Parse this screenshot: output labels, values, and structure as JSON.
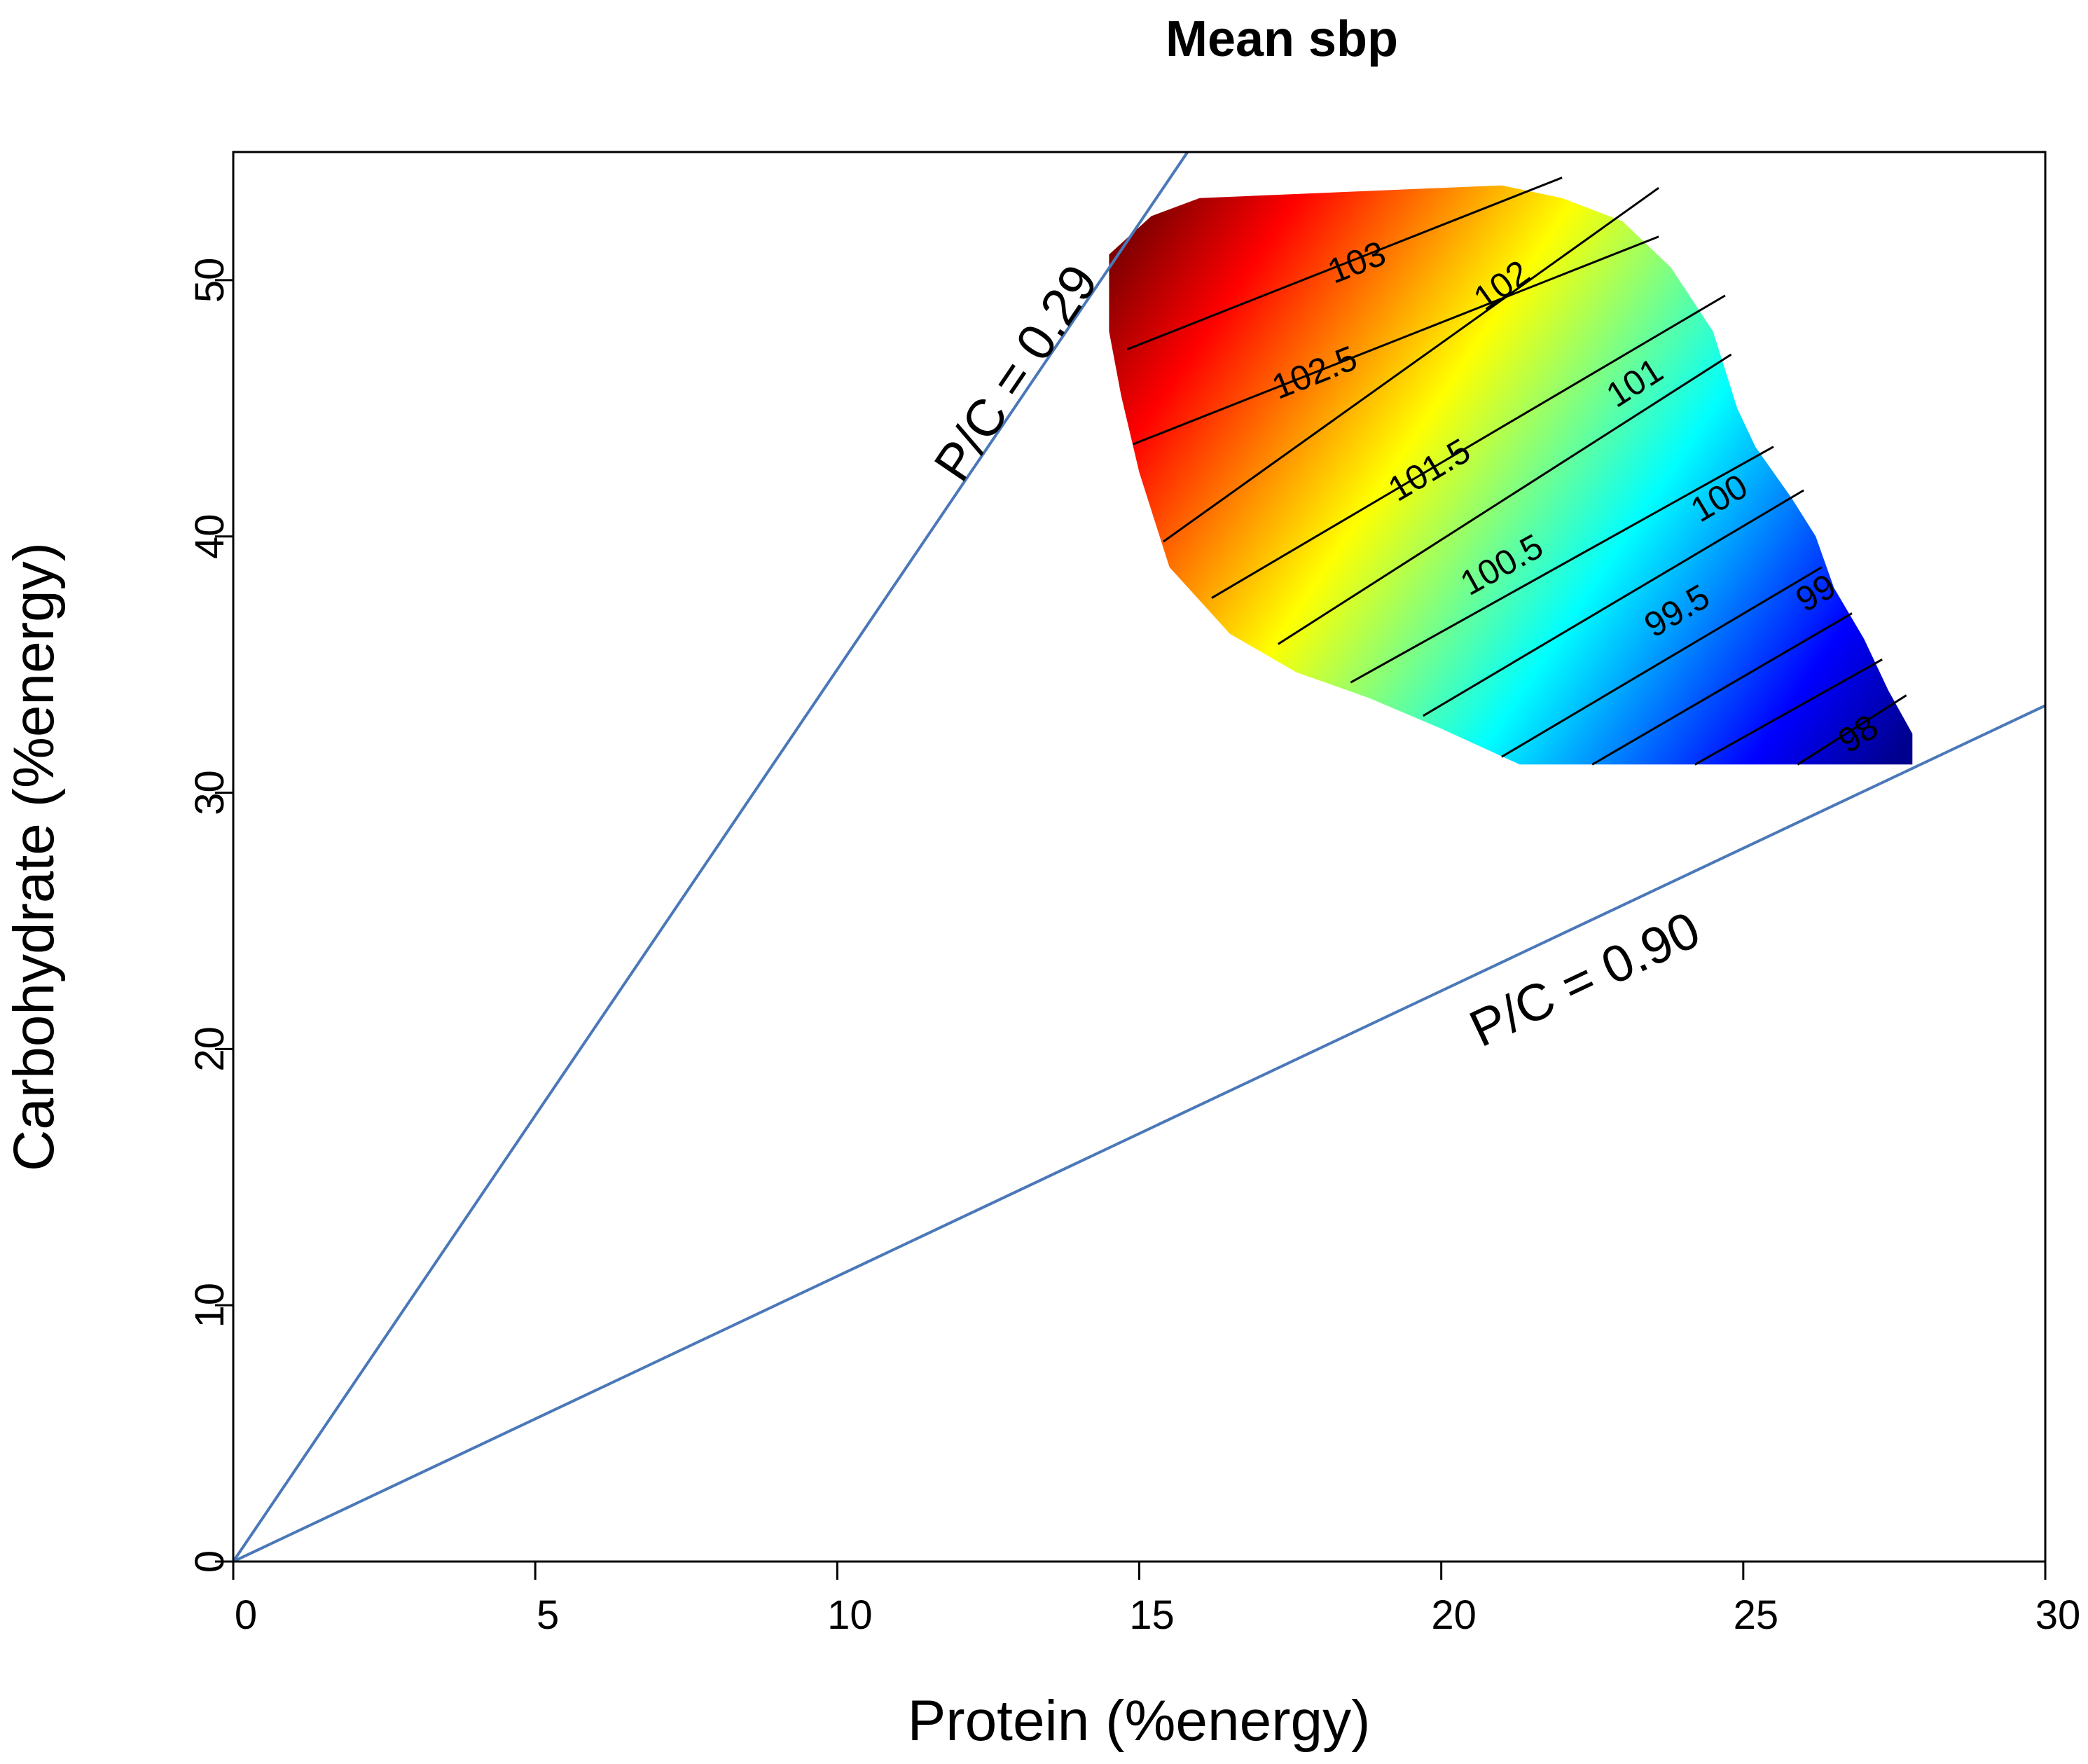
{
  "chart_data": {
    "type": "heatmap",
    "title": "Mean sbp",
    "xlabel": "Protein (%energy)",
    "ylabel": "Carbohydrate (%energy)",
    "xlim": [
      0,
      30
    ],
    "ylim": [
      0,
      55
    ],
    "x_ticks": [
      0,
      5,
      10,
      15,
      20,
      25,
      30
    ],
    "x_tick_labels": [
      "0",
      "5",
      "10",
      "15",
      "20",
      "25",
      "30"
    ],
    "y_ticks": [
      0,
      10,
      20,
      30,
      40,
      50
    ],
    "y_tick_labels": [
      "0",
      "10",
      "20",
      "30",
      "40",
      "50"
    ],
    "grid": false,
    "surface": {
      "variable": "Mean sbp",
      "value_range": [
        97.8,
        103.6
      ],
      "colormap": [
        "#00008f",
        "#0000ff",
        "#0080ff",
        "#00ffff",
        "#80ff80",
        "#ffff00",
        "#ff8000",
        "#ff0000",
        "#800000"
      ],
      "boundary": [
        [
          14.5,
          48
        ],
        [
          14.5,
          51
        ],
        [
          15.2,
          52.5
        ],
        [
          16,
          53.2
        ],
        [
          18,
          53.4
        ],
        [
          20,
          53.6
        ],
        [
          21,
          53.7
        ],
        [
          22,
          53.2
        ],
        [
          23,
          52.3
        ],
        [
          23.8,
          50.5
        ],
        [
          24.5,
          48
        ],
        [
          24.9,
          45
        ],
        [
          25.2,
          43.5
        ],
        [
          25.8,
          41.5
        ],
        [
          26.2,
          40
        ],
        [
          26.5,
          38
        ],
        [
          27,
          36
        ],
        [
          27.4,
          34
        ],
        [
          27.8,
          32.3
        ],
        [
          27.8,
          31.1
        ],
        [
          21.3,
          31.1
        ],
        [
          20,
          32.5
        ],
        [
          18.8,
          33.7
        ],
        [
          17.6,
          34.7
        ],
        [
          16.5,
          36.2
        ],
        [
          15.5,
          38.8
        ],
        [
          15,
          42.5
        ],
        [
          14.7,
          45.5
        ]
      ],
      "gradient_low": [
        27.5,
        31.3
      ],
      "gradient_high": [
        14.8,
        51.5
      ]
    },
    "contours": [
      {
        "level": 103,
        "label": "103",
        "x": [
          14.8,
          22
        ],
        "y": [
          47.3,
          54
        ],
        "label_at": [
          18.6,
          50.7
        ]
      },
      {
        "level": 102.5,
        "label": "102.5",
        "x": [
          14.9,
          23.6
        ],
        "y": [
          43.6,
          51.7
        ],
        "label_at": [
          17.9,
          46.4
        ]
      },
      {
        "level": 102,
        "label": "102",
        "x": [
          15.4,
          23.6
        ],
        "y": [
          39.8,
          53.6
        ],
        "label_at": [
          21,
          49.8
        ]
      },
      {
        "level": 101.5,
        "label": "101.5",
        "x": [
          16.2,
          24.7
        ],
        "y": [
          37.6,
          49.4
        ],
        "label_at": [
          19.8,
          42.6
        ]
      },
      {
        "level": 101,
        "label": "101",
        "x": [
          17.3,
          24.8
        ],
        "y": [
          35.8,
          47.1
        ],
        "label_at": [
          23.2,
          46
        ]
      },
      {
        "level": 100.5,
        "label": "100.5",
        "x": [
          18.5,
          25.5
        ],
        "y": [
          34.3,
          43.5
        ],
        "label_at": [
          21,
          38.9
        ]
      },
      {
        "level": 100,
        "label": "100",
        "x": [
          19.7,
          26
        ],
        "y": [
          33,
          41.8
        ],
        "label_at": [
          24.6,
          41.5
        ]
      },
      {
        "level": 99.5,
        "label": "99.5",
        "x": [
          21,
          26.3
        ],
        "y": [
          31.4,
          38.8
        ],
        "label_at": [
          23.9,
          37.1
        ]
      },
      {
        "level": 99,
        "label": "99",
        "x": [
          22.5,
          26.8
        ],
        "y": [
          31.1,
          37
        ],
        "label_at": [
          26.2,
          37.8
        ]
      },
      {
        "level": 98.5,
        "label": "",
        "x": [
          24.2,
          27.3
        ],
        "y": [
          31.1,
          35.2
        ],
        "label_at": [
          0,
          0
        ]
      },
      {
        "level": 98,
        "label": "98",
        "x": [
          25.9,
          27.7
        ],
        "y": [
          31.1,
          33.8
        ],
        "label_at": [
          26.9,
          32.3
        ]
      }
    ],
    "reference_lines": [
      {
        "label": "P/C = 0.29",
        "ratio": 0.29,
        "x": [
          0,
          15.8
        ],
        "y": [
          0,
          55
        ],
        "label_at": [
          13.2,
          46
        ]
      },
      {
        "label": "P/C = 0.90",
        "ratio": 0.9,
        "x": [
          0,
          30
        ],
        "y": [
          0,
          33.4
        ],
        "label_at": [
          22.5,
          22.1
        ]
      }
    ]
  }
}
